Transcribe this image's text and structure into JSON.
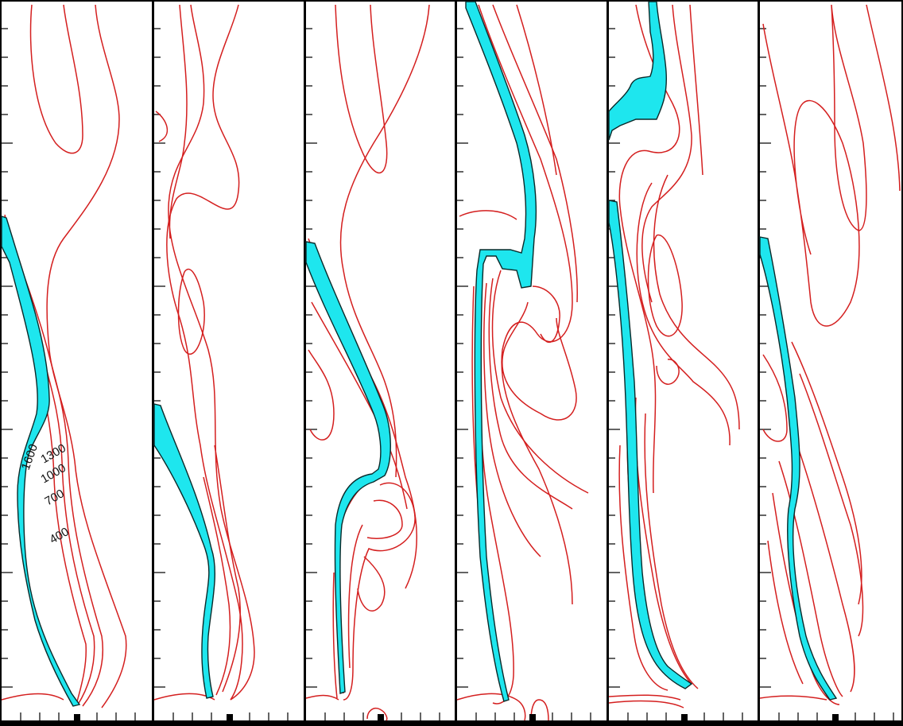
{
  "figure": {
    "panel_count": 6,
    "colors": {
      "isotherm": "#d41f1f",
      "flame_zone": "#1ee6ee",
      "background": "#ffffff",
      "frame": "#000000"
    },
    "contour_labels": [
      "1600",
      "1300",
      "1000",
      "700",
      "400"
    ]
  }
}
